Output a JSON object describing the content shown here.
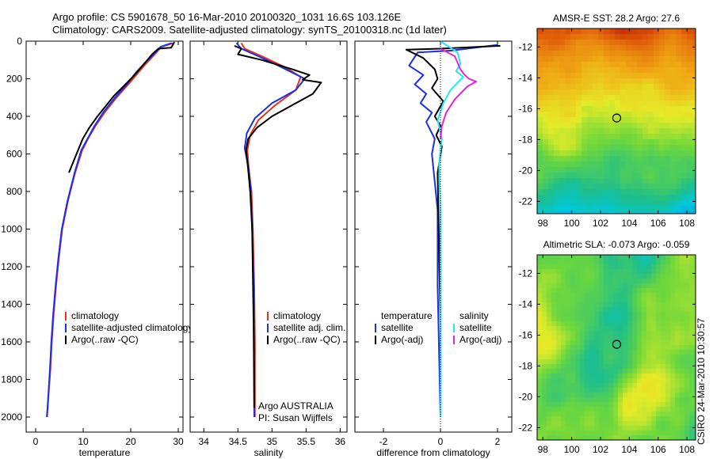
{
  "header": {
    "line1": "Argo profile: CS 5901678_50 16-Mar-2010 20100320_1031 16.6S 103.126E",
    "line2": "Climatology: CARS2009. Satellite-adjusted climatology: synTS_20100318.nc (1d later)"
  },
  "side_label": "CSIRO 24-Mar-2010 10:30:57",
  "colors": {
    "climatology": "#e8321e",
    "satellite": "#1b2ee8",
    "argo": "#000000",
    "sat_sal": "#22e6f0",
    "argo_sal": "#e823d8",
    "marker": "#000000"
  },
  "chart_data": [
    {
      "id": "temp",
      "type": "line",
      "xlabel": "temperature",
      "ylabel": "",
      "xlim": [
        -2,
        31
      ],
      "ylim": [
        2080,
        0
      ],
      "xticks": [
        0,
        10,
        20,
        30
      ],
      "yticks": [
        0,
        200,
        400,
        600,
        800,
        1000,
        1200,
        1400,
        1600,
        1800,
        2000
      ],
      "legend": [
        "climatology",
        "satellite-adjusted climatology",
        "Argo(..raw -QC)"
      ],
      "series": [
        {
          "name": "climatology",
          "color": "climatology",
          "x": [
            29.0,
            26.5,
            24.7,
            23.2,
            21.5,
            19.5,
            17.0,
            14.5,
            12.6,
            11.0,
            9.8,
            8.3,
            6.8,
            5.6,
            4.9,
            4.3,
            3.8,
            3.4,
            3.1,
            2.8,
            2.55,
            2.4
          ],
          "y": [
            10,
            30,
            80,
            120,
            170,
            230,
            300,
            380,
            450,
            520,
            580,
            700,
            850,
            1000,
            1150,
            1300,
            1450,
            1600,
            1750,
            1850,
            1950,
            2000
          ]
        },
        {
          "name": "satellite",
          "color": "satellite",
          "x": [
            28.6,
            26.3,
            24.4,
            22.8,
            21.0,
            19.2,
            16.7,
            14.2,
            12.4,
            10.9,
            9.6,
            8.2,
            6.7,
            5.5,
            4.8,
            4.2,
            3.7,
            3.3,
            3.0,
            2.75,
            2.5,
            2.35
          ],
          "y": [
            10,
            30,
            80,
            120,
            170,
            230,
            300,
            380,
            450,
            520,
            580,
            700,
            850,
            1000,
            1150,
            1300,
            1450,
            1600,
            1750,
            1850,
            1950,
            2000
          ]
        },
        {
          "name": "argo",
          "color": "argo",
          "x": [
            29.2,
            28.5,
            25.8,
            24.5,
            22.5,
            20.8,
            18.5,
            16.5,
            14.6,
            13.0,
            11.3,
            9.9,
            8.6,
            7.0
          ],
          "y": [
            5,
            35,
            40,
            70,
            130,
            180,
            240,
            290,
            350,
            400,
            460,
            520,
            600,
            700
          ]
        }
      ]
    },
    {
      "id": "sal",
      "type": "line",
      "xlabel": "salinity",
      "ylabel": "",
      "xlim": [
        33.8,
        36.1
      ],
      "ylim": [
        2080,
        0
      ],
      "xticks": [
        34,
        34.5,
        35,
        35.5,
        36
      ],
      "yticks": [],
      "legend": [
        "climatology",
        "satellite adj. clim.",
        "Argo(..raw -QC)"
      ],
      "annotation": [
        "Argo AUSTRALIA",
        "PI: Susan Wijffels"
      ],
      "series": [
        {
          "name": "climatology",
          "color": "climatology",
          "x": [
            34.55,
            34.6,
            34.85,
            35.2,
            35.42,
            35.35,
            35.05,
            34.8,
            34.68,
            34.64,
            34.66,
            34.7,
            34.72,
            34.74,
            34.75,
            34.75,
            34.75
          ],
          "y": [
            10,
            40,
            80,
            140,
            190,
            260,
            340,
            420,
            500,
            580,
            680,
            800,
            1000,
            1300,
            1600,
            1800,
            2000
          ]
        },
        {
          "name": "satellite",
          "color": "satellite",
          "x": [
            34.48,
            34.55,
            34.8,
            35.15,
            35.48,
            35.35,
            35.0,
            34.75,
            34.63,
            34.6,
            34.66,
            34.69,
            34.71,
            34.73,
            34.74,
            34.74,
            34.74
          ],
          "y": [
            10,
            40,
            80,
            140,
            200,
            260,
            330,
            410,
            490,
            570,
            680,
            800,
            1000,
            1300,
            1600,
            1800,
            2000
          ]
        },
        {
          "name": "argo",
          "color": "argo",
          "x": [
            34.45,
            34.55,
            34.5,
            34.85,
            35.3,
            35.55,
            35.45,
            35.72,
            35.6,
            35.3,
            35.0,
            34.78,
            34.65,
            34.62,
            34.65,
            34.68,
            34.71,
            34.73,
            34.74
          ],
          "y": [
            25,
            40,
            70,
            100,
            150,
            180,
            205,
            220,
            280,
            340,
            400,
            460,
            520,
            580,
            680,
            800,
            1000,
            1500,
            1950
          ]
        }
      ]
    },
    {
      "id": "diff",
      "type": "line",
      "xlabel": "difference from climatology",
      "ylabel": "",
      "xlim": [
        -3.0,
        2.5
      ],
      "ylim": [
        2080,
        0
      ],
      "xticks": [
        -2,
        0,
        2
      ],
      "yticks": [],
      "legend_left": [
        "temperature",
        "satellite",
        "Argo(-adj)"
      ],
      "legend_right": [
        "salinity",
        "satellite",
        "Argo(-adj)"
      ],
      "series": [
        {
          "name": "temp_satellite",
          "color": "satellite",
          "x": [
            2.0,
            0.4,
            -0.8,
            -1.1,
            -0.6,
            -0.9,
            -0.5,
            -0.7,
            -0.3,
            -0.5,
            -0.2,
            -0.3,
            -0.1,
            -0.1,
            0.0
          ],
          "y": [
            20,
            50,
            60,
            130,
            180,
            230,
            280,
            330,
            380,
            430,
            520,
            600,
            900,
            1300,
            2000
          ]
        },
        {
          "name": "temp_argo",
          "color": "argo",
          "x": [
            2.1,
            0.0,
            -1.2,
            -0.6,
            -0.2,
            -0.1,
            -0.3,
            0.1,
            -0.2,
            0.0,
            -0.15,
            0.05,
            -0.1,
            0.0,
            0.0
          ],
          "y": [
            25,
            40,
            45,
            90,
            150,
            200,
            250,
            320,
            400,
            450,
            500,
            560,
            700,
            1500,
            2000
          ]
        },
        {
          "name": "sal_satellite",
          "color": "sat_sal",
          "x": [
            0.0,
            0.6,
            0.7,
            0.55,
            0.8,
            0.35,
            0.1,
            -0.1,
            0.05,
            -0.05,
            0.0,
            0.0
          ],
          "y": [
            0,
            60,
            120,
            160,
            190,
            260,
            330,
            420,
            520,
            650,
            900,
            2000
          ]
        },
        {
          "name": "sal_argo",
          "color": "argo_sal",
          "x": [
            0.0,
            0.5,
            0.7,
            0.85,
            1.0,
            1.25,
            0.95,
            0.5,
            0.2,
            0.05,
            0.0
          ],
          "y": [
            40,
            80,
            150,
            180,
            200,
            215,
            240,
            310,
            380,
            450,
            520
          ]
        }
      ]
    },
    {
      "id": "sst_map",
      "type": "heatmap",
      "title": "AMSR-E SST: 28.2 Argo: 27.6",
      "xlim": [
        97.6,
        108.6
      ],
      "ylim": [
        -22.8,
        -10.8
      ],
      "xticks": [
        98,
        100,
        102,
        104,
        106,
        108
      ],
      "yticks": [
        -12,
        -14,
        -16,
        -18,
        -20,
        -22
      ],
      "marker": [
        103.126,
        -16.6
      ]
    },
    {
      "id": "sla_map",
      "type": "heatmap",
      "title": "Altimetric SLA: -0.073 Argo: -0.059",
      "xlim": [
        97.6,
        108.6
      ],
      "ylim": [
        -22.8,
        -10.8
      ],
      "xticks": [
        98,
        100,
        102,
        104,
        106,
        108
      ],
      "yticks": [
        -12,
        -14,
        -16,
        -18,
        -20,
        -22
      ],
      "marker": [
        103.126,
        -16.6
      ]
    }
  ]
}
